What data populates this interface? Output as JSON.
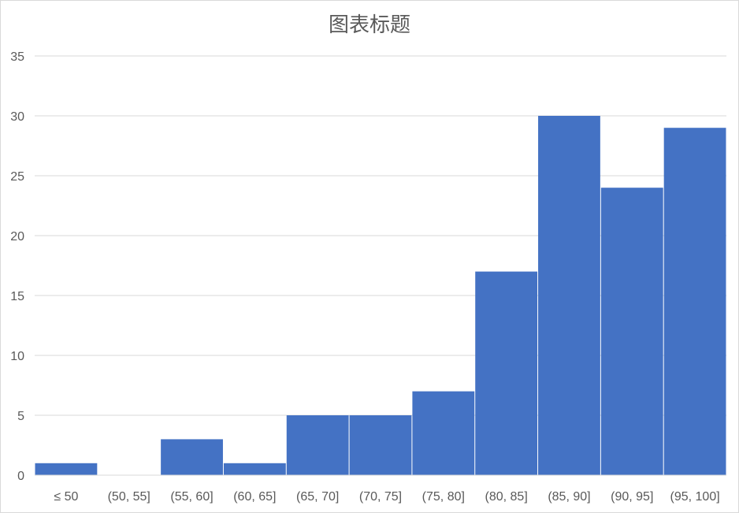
{
  "chart_data": {
    "type": "bar",
    "title": "图表标题",
    "categories": [
      "≤ 50",
      "(50, 55]",
      "(55, 60]",
      "(60, 65]",
      "(65, 70]",
      "(70, 75]",
      "(75, 80]",
      "(80, 85]",
      "(85, 90]",
      "(90, 95]",
      "(95, 100]"
    ],
    "values": [
      1,
      0,
      3,
      1,
      5,
      5,
      7,
      17,
      30,
      24,
      29
    ],
    "ylim": [
      0,
      35
    ],
    "yticks": [
      0,
      5,
      10,
      15,
      20,
      25,
      30,
      35
    ],
    "grid": true,
    "bar_color": "#4472C4",
    "gridline_color": "#d9d9d9",
    "xlabel": "",
    "ylabel": ""
  }
}
